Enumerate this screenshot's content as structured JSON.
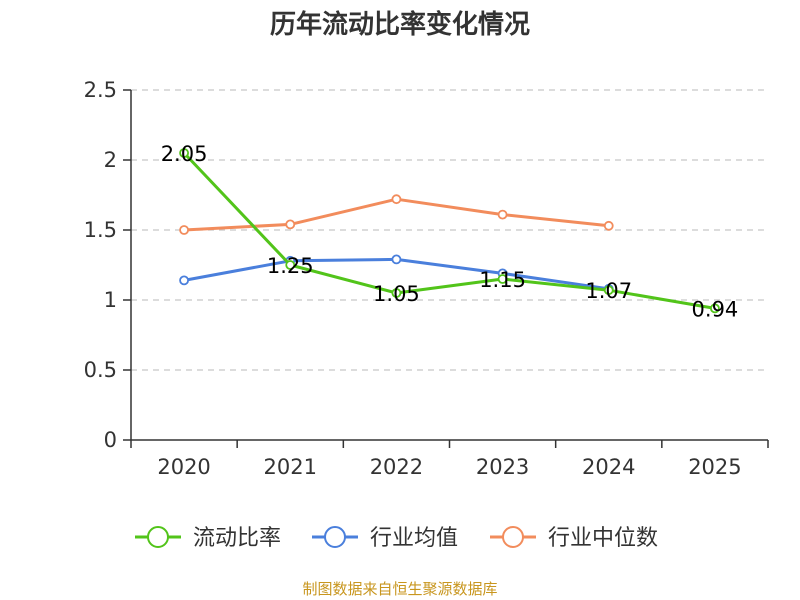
{
  "title": "历年流动比率变化情况",
  "source": "制图数据来自恒生聚源数据库",
  "chart_data": {
    "type": "line",
    "title": "历年流动比率变化情况",
    "xlabel": "",
    "ylabel": "",
    "categories": [
      "2020",
      "2021",
      "2022",
      "2023",
      "2024",
      "2025"
    ],
    "ylim": [
      0,
      2.5
    ],
    "yticks": [
      "0",
      "0.5",
      "1",
      "1.5",
      "2",
      "2.5"
    ],
    "grid": true,
    "legend_position": "bottom",
    "series": [
      {
        "name": "流动比率",
        "color": "#52c41a",
        "values": [
          2.05,
          1.25,
          1.05,
          1.15,
          1.07,
          0.94
        ],
        "labels": [
          "2.05",
          "1.25",
          "1.05",
          "1.15",
          "1.07",
          "0.94"
        ]
      },
      {
        "name": "行业均值",
        "color": "#4a7fdc",
        "values": [
          1.14,
          1.28,
          1.29,
          1.19,
          1.08,
          null
        ]
      },
      {
        "name": "行业中位数",
        "color": "#f28c5c",
        "values": [
          1.5,
          1.54,
          1.72,
          1.61,
          1.53,
          null
        ]
      }
    ]
  }
}
